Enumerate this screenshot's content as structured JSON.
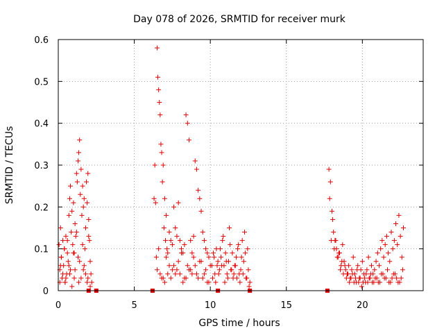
{
  "chart_data": {
    "type": "scatter",
    "title": "Day 078 of 2026, SRMTID for receiver murk",
    "xlabel": "GPS time / hours",
    "ylabel": "SRMTID / TECUs",
    "xlim": [
      0,
      24
    ],
    "ylim": [
      0,
      0.6
    ],
    "xticks": [
      0,
      5,
      10,
      15,
      20
    ],
    "xtick_labels": [
      "0",
      "5",
      "10",
      "15",
      "20"
    ],
    "yticks": [
      0,
      0.1,
      0.2,
      0.3,
      0.4,
      0.5,
      0.6
    ],
    "ytick_labels": [
      "0",
      "0.1",
      "0.2",
      "0.3",
      "0.4",
      "0.5",
      "0.6"
    ],
    "grid": true,
    "series": [
      {
        "name": "SRMTID",
        "color": "#e00000",
        "marker": "plus",
        "x": [
          0.05,
          0.1,
          0.15,
          0.2,
          0.25,
          0.3,
          0.35,
          0.4,
          0.45,
          0.5,
          0.55,
          0.6,
          0.65,
          0.7,
          0.75,
          0.8,
          0.85,
          0.9,
          0.95,
          1.0,
          1.05,
          1.1,
          1.15,
          1.2,
          1.25,
          1.3,
          1.35,
          1.4,
          1.45,
          1.5,
          1.55,
          1.6,
          1.65,
          1.7,
          1.75,
          1.8,
          1.85,
          1.9,
          1.95,
          2.0,
          2.05,
          2.1,
          2.15,
          2.2,
          0.1,
          0.3,
          0.5,
          0.7,
          0.9,
          1.1,
          1.3,
          1.5,
          1.7,
          1.9,
          2.1,
          0.2,
          0.4,
          0.6,
          0.8,
          1.0,
          1.2,
          1.4,
          1.6,
          1.8,
          2.0,
          0.15,
          0.45,
          0.75,
          1.05,
          1.35,
          1.65,
          1.95,
          6.3,
          6.35,
          6.4,
          6.45,
          6.5,
          6.55,
          6.6,
          6.65,
          6.7,
          6.75,
          6.8,
          6.85,
          6.9,
          6.95,
          7.0,
          7.05,
          7.1,
          7.15,
          7.2,
          7.3,
          7.4,
          7.5,
          7.6,
          7.7,
          7.8,
          7.9,
          8.0,
          8.1,
          8.2,
          8.3,
          8.4,
          8.5,
          8.6,
          8.7,
          8.8,
          8.9,
          9.0,
          9.1,
          9.2,
          9.3,
          9.4,
          9.5,
          9.6,
          9.7,
          9.8,
          9.9,
          10.0,
          6.5,
          6.7,
          6.9,
          7.1,
          7.3,
          7.5,
          7.7,
          7.9,
          8.1,
          8.3,
          8.5,
          8.7,
          8.9,
          9.1,
          9.3,
          9.5,
          9.7,
          9.9,
          6.6,
          6.8,
          7.0,
          7.2,
          7.4,
          7.6,
          7.8,
          8.0,
          8.2,
          8.4,
          8.6,
          8.8,
          9.0,
          9.2,
          9.4,
          9.6,
          9.8,
          10.1,
          10.2,
          10.3,
          10.4,
          10.5,
          10.6,
          10.7,
          10.8,
          10.9,
          11.0,
          11.1,
          11.2,
          11.3,
          11.4,
          11.5,
          11.6,
          11.7,
          11.8,
          11.9,
          12.0,
          12.1,
          12.2,
          12.3,
          12.4,
          12.5,
          12.6,
          10.15,
          10.35,
          10.55,
          10.75,
          10.95,
          11.15,
          11.35,
          11.55,
          11.75,
          11.95,
          12.15,
          12.35,
          12.55,
          10.25,
          10.45,
          10.65,
          10.85,
          11.05,
          11.25,
          11.45,
          11.65,
          11.85,
          12.05,
          12.25,
          12.45,
          17.8,
          17.9,
          18.0,
          18.1,
          18.2,
          18.3,
          18.4,
          18.5,
          18.6,
          18.7,
          18.8,
          18.9,
          19.0,
          19.1,
          19.2,
          19.3,
          19.4,
          19.5,
          19.6,
          19.7,
          19.8,
          19.9,
          20.0,
          20.1,
          20.2,
          20.3,
          20.4,
          20.5,
          20.6,
          20.7,
          20.8,
          20.9,
          21.0,
          21.1,
          21.2,
          21.3,
          21.4,
          21.5,
          21.6,
          21.7,
          21.8,
          21.9,
          22.0,
          22.1,
          22.2,
          22.3,
          22.4,
          22.5,
          22.6,
          22.7,
          17.85,
          18.05,
          18.25,
          18.45,
          18.65,
          18.85,
          19.05,
          19.25,
          19.45,
          19.65,
          19.85,
          20.05,
          20.25,
          20.45,
          20.65,
          20.85,
          21.05,
          21.25,
          21.45,
          21.65,
          21.85,
          22.05,
          22.25,
          22.45,
          22.65,
          17.95,
          18.15,
          18.35,
          18.55,
          18.75,
          18.95,
          19.15,
          19.35,
          19.55,
          19.75,
          19.95,
          20.15,
          20.35,
          20.55,
          20.75,
          20.95,
          21.15,
          21.35,
          21.55,
          21.75,
          21.95,
          22.15,
          22.35,
          22.55
        ],
        "y": [
          0.11,
          0.05,
          0.15,
          0.08,
          0.03,
          0.12,
          0.06,
          0.1,
          0.02,
          0.13,
          0.04,
          0.09,
          0.07,
          0.18,
          0.22,
          0.25,
          0.14,
          0.19,
          0.11,
          0.21,
          0.09,
          0.16,
          0.13,
          0.28,
          0.26,
          0.31,
          0.33,
          0.36,
          0.23,
          0.29,
          0.18,
          0.25,
          0.2,
          0.22,
          0.1,
          0.15,
          0.26,
          0.21,
          0.28,
          0.17,
          0.12,
          0.07,
          0.04,
          0.02,
          0.02,
          0.04,
          0.03,
          0.06,
          0.01,
          0.05,
          0.08,
          0.03,
          0.06,
          0.02,
          0.01,
          0.08,
          0.1,
          0.12,
          0.05,
          0.09,
          0.14,
          0.07,
          0.11,
          0.04,
          0.13,
          0.06,
          0.02,
          0.04,
          0.03,
          0.02,
          0.05,
          0.03,
          0.22,
          0.3,
          0.21,
          0.08,
          0.58,
          0.51,
          0.48,
          0.45,
          0.42,
          0.35,
          0.33,
          0.26,
          0.3,
          0.15,
          0.22,
          0.12,
          0.18,
          0.1,
          0.09,
          0.14,
          0.12,
          0.11,
          0.2,
          0.15,
          0.13,
          0.21,
          0.12,
          0.1,
          0.09,
          0.11,
          0.42,
          0.4,
          0.36,
          0.12,
          0.09,
          0.13,
          0.31,
          0.29,
          0.24,
          0.22,
          0.19,
          0.14,
          0.12,
          0.1,
          0.09,
          0.08,
          0.06,
          0.05,
          0.04,
          0.03,
          0.08,
          0.06,
          0.05,
          0.04,
          0.07,
          0.09,
          0.03,
          0.06,
          0.05,
          0.08,
          0.04,
          0.07,
          0.03,
          0.05,
          0.02,
          0.1,
          0.03,
          0.02,
          0.04,
          0.03,
          0.06,
          0.05,
          0.04,
          0.02,
          0.03,
          0.05,
          0.04,
          0.06,
          0.03,
          0.07,
          0.04,
          0.02,
          0.06,
          0.09,
          0.04,
          0.1,
          0.07,
          0.05,
          0.08,
          0.12,
          0.06,
          0.09,
          0.04,
          0.07,
          0.11,
          0.05,
          0.03,
          0.06,
          0.08,
          0.1,
          0.04,
          0.05,
          0.12,
          0.07,
          0.09,
          0.03,
          0.05,
          0.02,
          0.03,
          0.02,
          0.04,
          0.06,
          0.02,
          0.03,
          0.05,
          0.04,
          0.03,
          0.02,
          0.04,
          0.03,
          0.01,
          0.08,
          0.06,
          0.1,
          0.13,
          0.07,
          0.15,
          0.09,
          0.06,
          0.11,
          0.08,
          0.14,
          0.1,
          0.29,
          0.26,
          0.19,
          0.14,
          0.12,
          0.1,
          0.08,
          0.09,
          0.06,
          0.11,
          0.07,
          0.05,
          0.04,
          0.06,
          0.03,
          0.05,
          0.08,
          0.04,
          0.02,
          0.06,
          0.03,
          0.05,
          0.07,
          0.04,
          0.02,
          0.05,
          0.08,
          0.03,
          0.06,
          0.04,
          0.05,
          0.07,
          0.09,
          0.06,
          0.1,
          0.12,
          0.08,
          0.11,
          0.13,
          0.09,
          0.07,
          0.14,
          0.1,
          0.12,
          0.16,
          0.11,
          0.18,
          0.13,
          0.08,
          0.15,
          0.22,
          0.17,
          0.12,
          0.09,
          0.07,
          0.06,
          0.04,
          0.03,
          0.02,
          0.05,
          0.03,
          0.02,
          0.04,
          0.03,
          0.02,
          0.03,
          0.02,
          0.04,
          0.03,
          0.05,
          0.02,
          0.04,
          0.03,
          0.02,
          0.05,
          0.12,
          0.1,
          0.08,
          0.05,
          0.04,
          0.03,
          0.02,
          0.04,
          0.03,
          0.02,
          0.01,
          0.03,
          0.02,
          0.04,
          0.02,
          0.03,
          0.02,
          0.04,
          0.03,
          0.02,
          0.03,
          0.04,
          0.02,
          0.03
        ]
      }
    ],
    "baseline_markers_x": [
      2.0,
      2.5,
      6.2,
      10.5,
      12.6,
      17.7
    ]
  }
}
